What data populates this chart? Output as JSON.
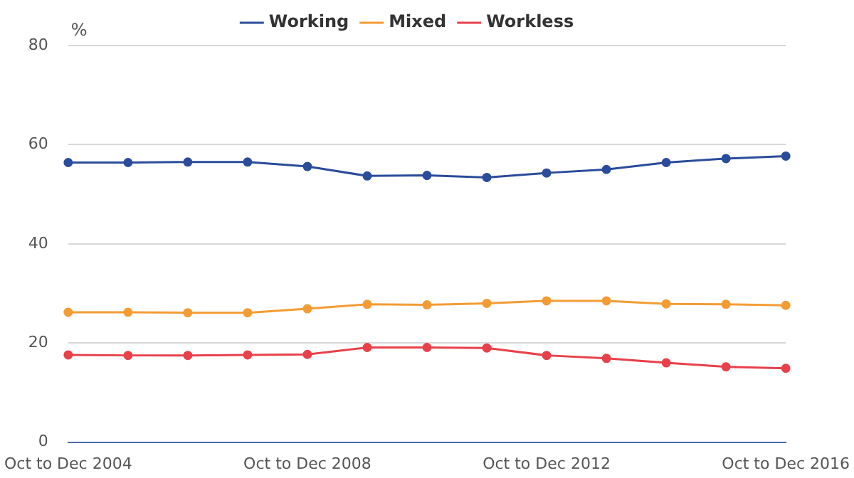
{
  "chart_data": {
    "type": "line",
    "ylabel": "%",
    "categories": [
      "Oct to Dec 2004",
      null,
      null,
      null,
      "Oct to Dec 2008",
      null,
      null,
      null,
      "Oct to Dec 2012",
      null,
      null,
      null,
      "Oct to Dec 2016"
    ],
    "series": [
      {
        "name": "Working",
        "color": "#2b4c9b",
        "values": [
          56.4,
          56.4,
          56.5,
          56.5,
          55.6,
          53.7,
          53.8,
          53.4,
          54.3,
          55.0,
          56.4,
          57.2,
          57.7
        ]
      },
      {
        "name": "Mixed",
        "color": "#f39c34",
        "values": [
          26.2,
          26.2,
          26.1,
          26.1,
          26.9,
          27.8,
          27.7,
          28.0,
          28.5,
          28.5,
          27.9,
          27.8,
          27.6
        ]
      },
      {
        "name": "Workless",
        "color": "#e8414a",
        "values": [
          17.6,
          17.5,
          17.5,
          17.6,
          17.7,
          19.1,
          19.1,
          19.0,
          17.5,
          16.9,
          16.0,
          15.2,
          14.9
        ]
      }
    ],
    "ylim": [
      0,
      80
    ],
    "yticks": [
      0,
      20,
      40,
      60,
      80
    ],
    "grid": "y",
    "legend": "top",
    "marker": "circle",
    "line_style": "solid"
  }
}
